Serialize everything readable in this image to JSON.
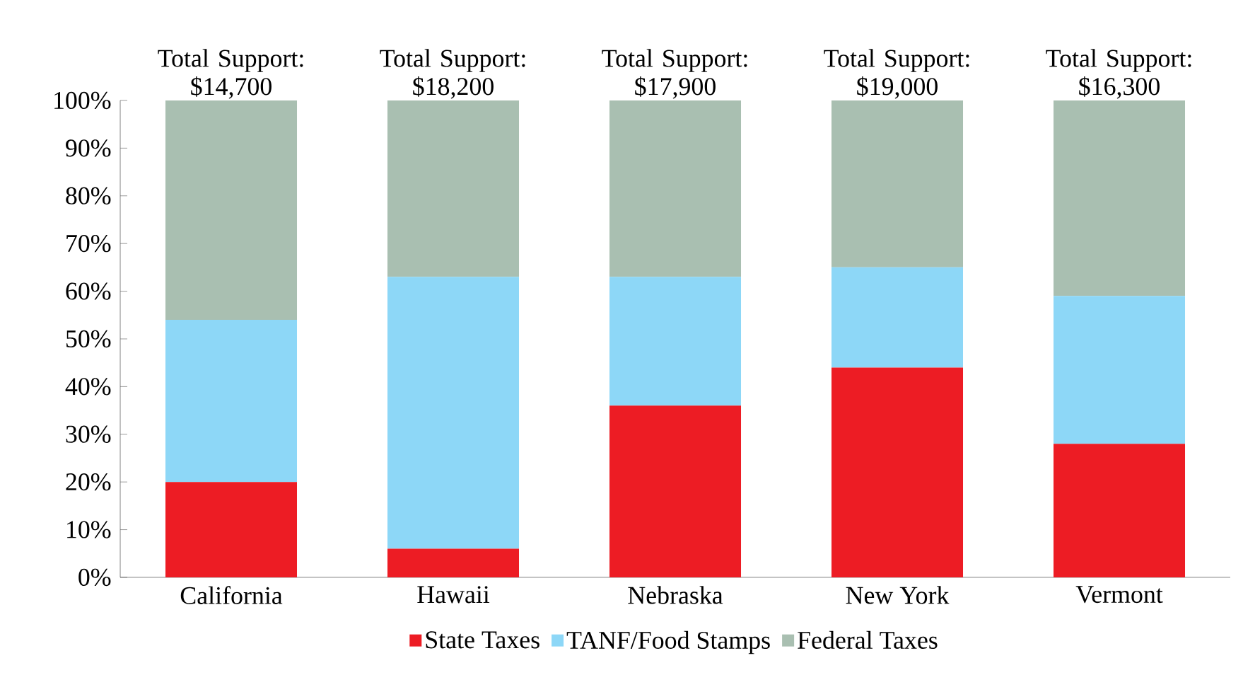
{
  "chart_data": {
    "type": "bar",
    "stacked": true,
    "categories": [
      "California",
      "Hawaii",
      "Nebraska",
      "New York",
      "Vermont"
    ],
    "series": [
      {
        "name": "State Taxes",
        "color": "#ed1c24",
        "values": [
          20,
          6,
          36,
          44,
          28
        ]
      },
      {
        "name": "TANF/Food Stamps",
        "color": "#8dd7f7",
        "values": [
          34,
          57,
          27,
          21,
          31
        ]
      },
      {
        "name": "Federal Taxes",
        "color": "#a9bfb1",
        "values": [
          46,
          37,
          37,
          35,
          41
        ]
      }
    ],
    "ylim": [
      0,
      100
    ],
    "yticks": [
      {
        "value": 0,
        "label": "0%"
      },
      {
        "value": 10,
        "label": "10%"
      },
      {
        "value": 20,
        "label": "20%"
      },
      {
        "value": 30,
        "label": "30%"
      },
      {
        "value": 40,
        "label": "40%"
      },
      {
        "value": 50,
        "label": "50%"
      },
      {
        "value": 60,
        "label": "60%"
      },
      {
        "value": 70,
        "label": "70%"
      },
      {
        "value": 80,
        "label": "80%"
      },
      {
        "value": 90,
        "label": "90%"
      },
      {
        "value": 100,
        "label": "100%"
      }
    ],
    "annotations": [
      {
        "text": "Total Support: $14,700",
        "x": "California",
        "y": 100
      },
      {
        "text": "Total Support: $18,200",
        "x": "Hawaii",
        "y": 100
      },
      {
        "text": "Total Support: $17,900",
        "x": "Nebraska",
        "y": 100
      },
      {
        "text": "Total Support: $19,000",
        "x": "New York",
        "y": 100
      },
      {
        "text": "Total Support: $16,300",
        "x": "Vermont",
        "y": 100
      }
    ],
    "legend": "bottom",
    "grid": false
  }
}
